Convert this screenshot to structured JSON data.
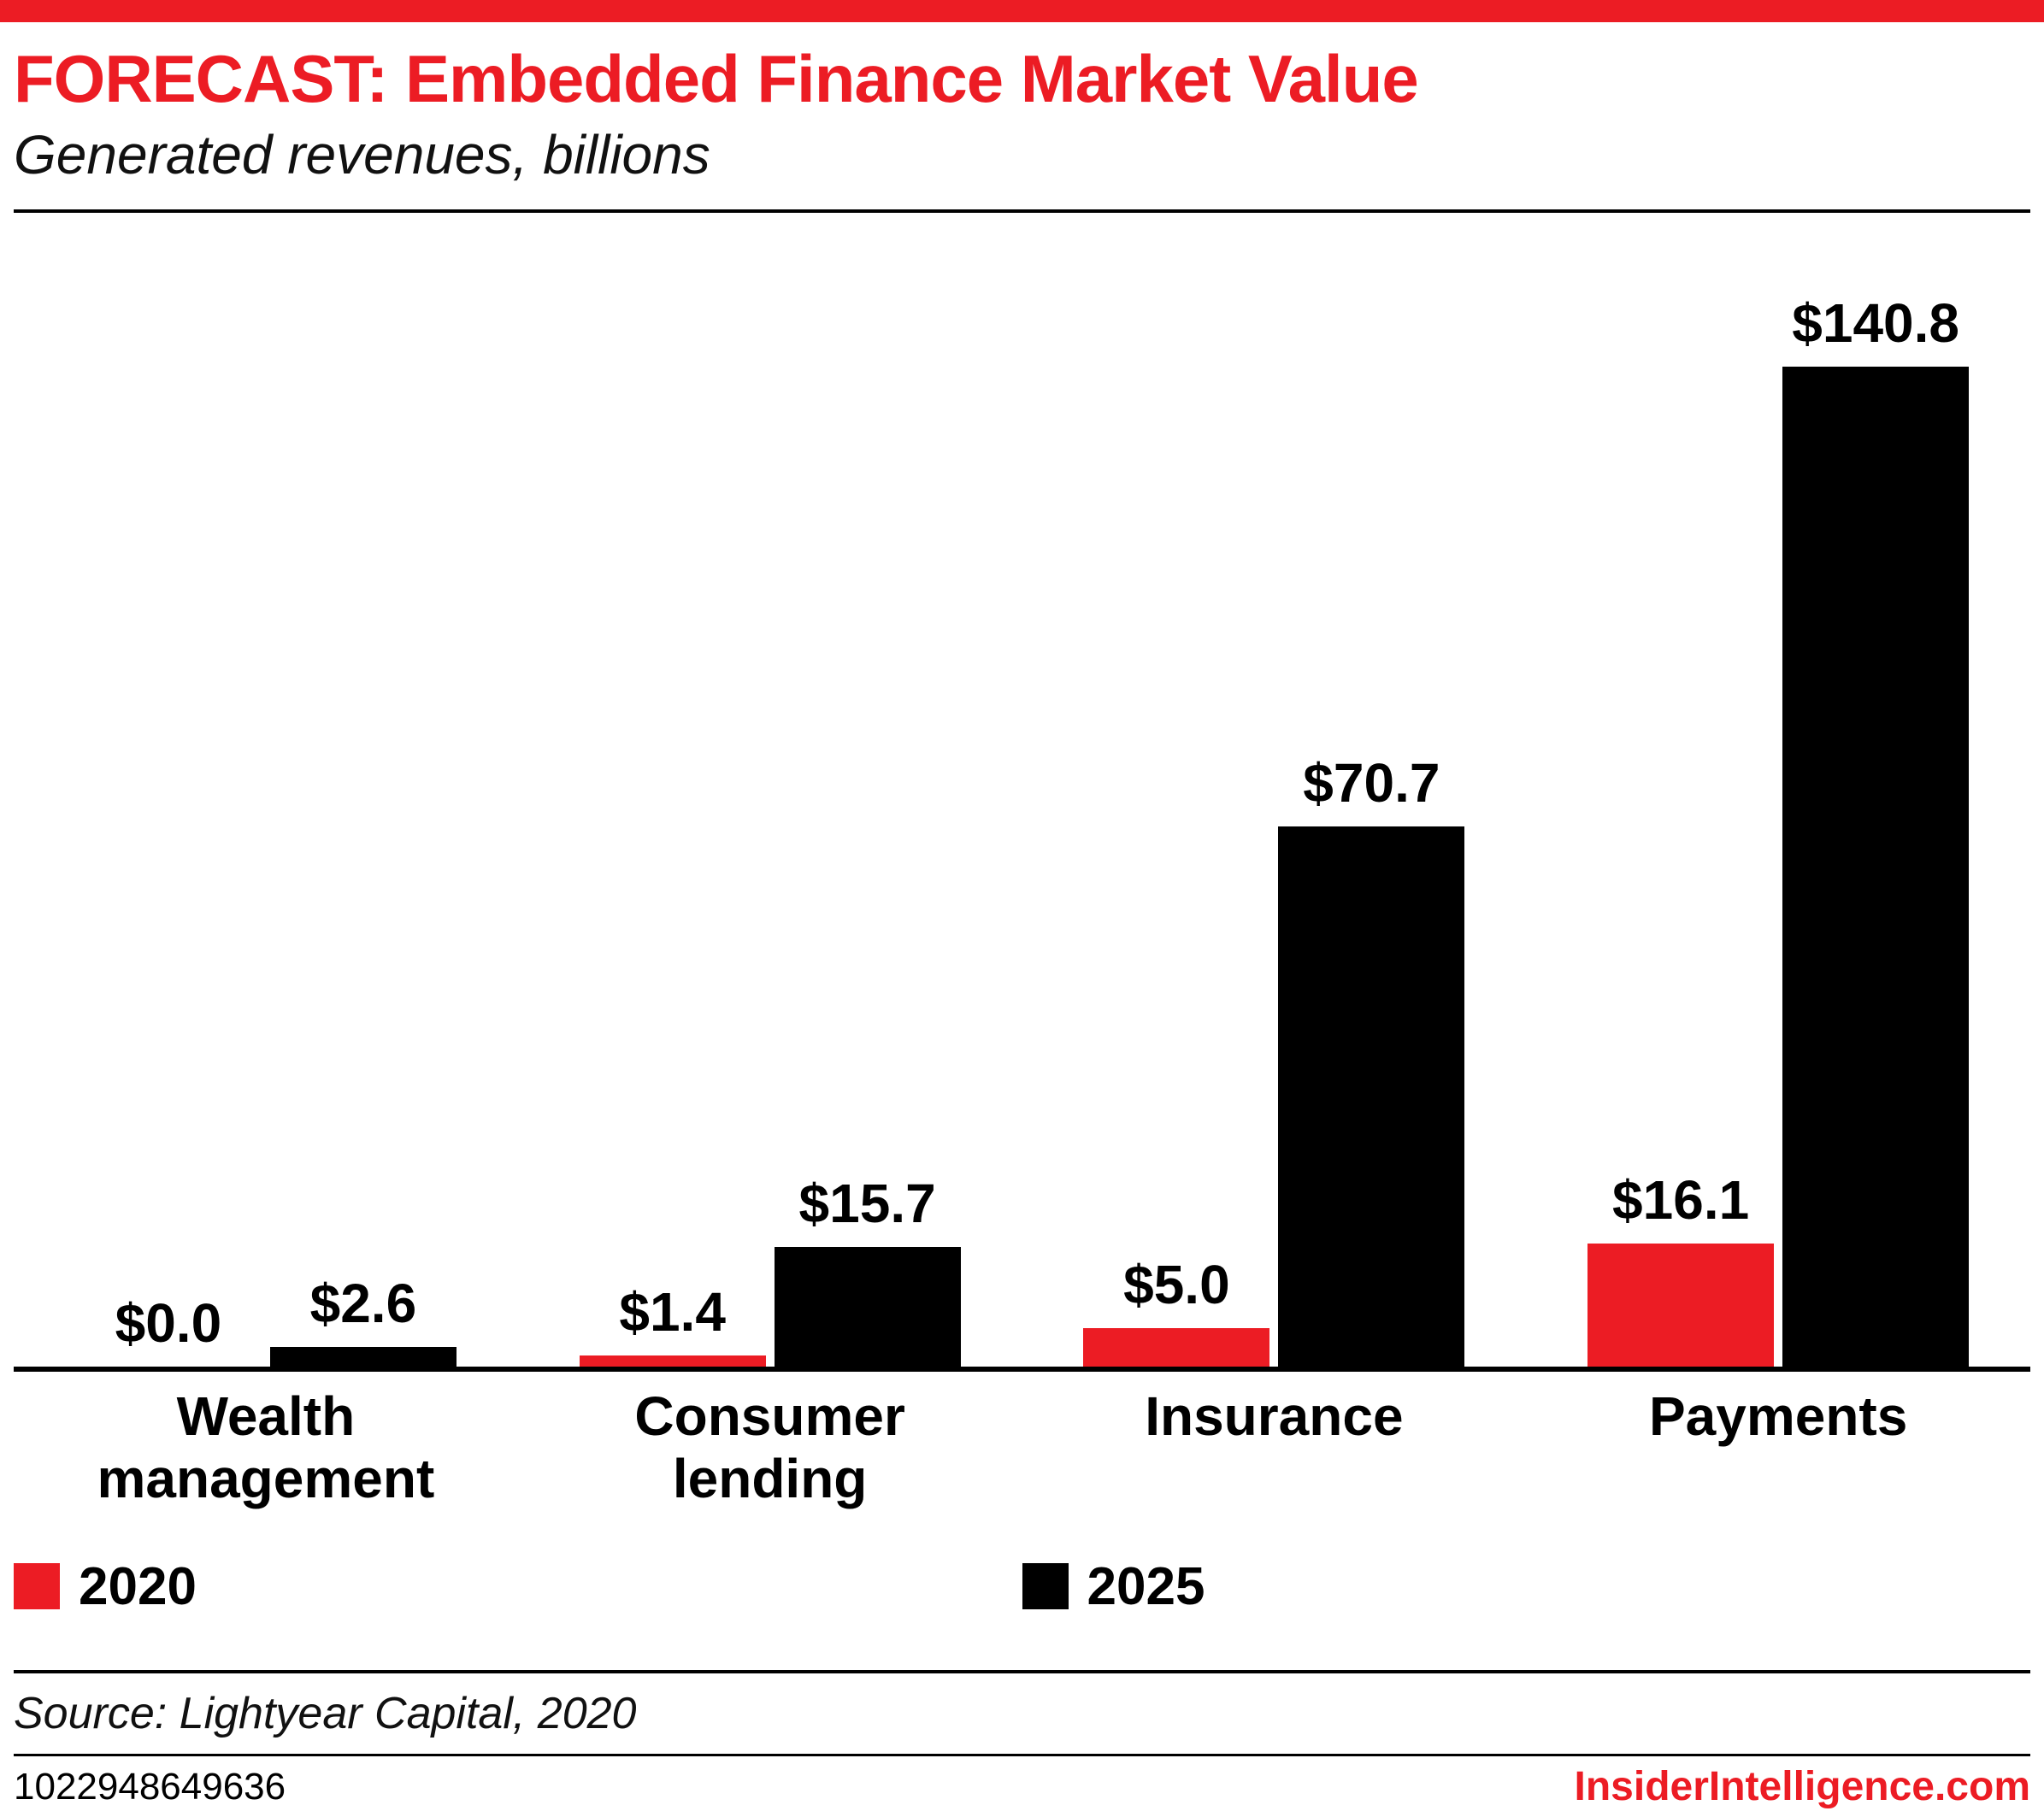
{
  "header": {
    "title": "FORECAST: Embedded Finance Market Value",
    "subtitle": "Generated revenues, billions"
  },
  "chart_data": {
    "type": "bar",
    "title": "FORECAST: Embedded Finance Market Value",
    "subtitle": "Generated revenues, billions",
    "categories": [
      "Wealth management",
      "Consumer lending",
      "Insurance",
      "Payments"
    ],
    "series": [
      {
        "name": "2020",
        "color": "#EC1C24",
        "values": [
          0.0,
          1.4,
          5.0,
          16.1
        ],
        "labels": [
          "$0.0",
          "$1.4",
          "$5.0",
          "$16.1"
        ]
      },
      {
        "name": "2025",
        "color": "#000000",
        "values": [
          2.6,
          15.7,
          70.7,
          140.8
        ],
        "labels": [
          "$2.6",
          "$15.7",
          "$70.7",
          "$140.8"
        ]
      }
    ],
    "ylim": [
      0,
      140.8
    ],
    "grid": false,
    "legend_position": "bottom"
  },
  "legend": {
    "items": [
      {
        "label": "2020",
        "color": "#EC1C24"
      },
      {
        "label": "2025",
        "color": "#000000"
      }
    ]
  },
  "footer": {
    "source": "Source: Lightyear Capital, 2020",
    "chart_id": "1022948649636",
    "brand": "InsiderIntelligence.com"
  },
  "colors": {
    "accent_red": "#EC1C24",
    "bar_2025_black": "#000000"
  }
}
